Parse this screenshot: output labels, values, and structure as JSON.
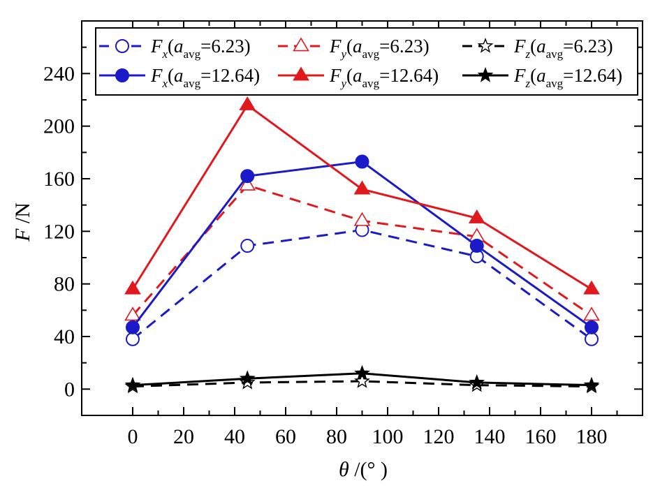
{
  "chart_data": {
    "type": "line",
    "xlabel": {
      "symbol": "θ",
      "unit": "/(°  )"
    },
    "ylabel": {
      "symbol": "F",
      "unit": "/N"
    },
    "xlim": [
      -20,
      200
    ],
    "ylim": [
      -20,
      280
    ],
    "x_ticks": [
      0,
      20,
      40,
      60,
      80,
      100,
      120,
      140,
      160,
      180
    ],
    "y_ticks": [
      0,
      40,
      80,
      120,
      160,
      200,
      240
    ],
    "x_minor_ticks": [
      10,
      30,
      50,
      70,
      90,
      110,
      130,
      150,
      170,
      190
    ],
    "y_minor_ticks": [
      20,
      60,
      100,
      140,
      180,
      220,
      260
    ],
    "x": [
      0,
      45,
      90,
      135,
      180
    ],
    "legend_position": "top",
    "series": [
      {
        "id": "fx1",
        "base": "F",
        "sub": "x",
        "cond": "=6.23)",
        "values": [
          38,
          109,
          121,
          101,
          38
        ],
        "color": "#1a1ac8",
        "dash": "dashed",
        "marker": "circle",
        "filled": false
      },
      {
        "id": "fy1",
        "base": "F",
        "sub": "y",
        "cond": "=6.23)",
        "values": [
          56,
          155,
          128,
          116,
          56
        ],
        "color": "#e0191e",
        "dash": "dashed",
        "marker": "triangle",
        "filled": false
      },
      {
        "id": "fz1",
        "base": "F",
        "sub": "z",
        "cond": "=6.23)",
        "values": [
          2,
          5,
          6,
          3,
          2
        ],
        "color": "#000000",
        "dash": "dashed",
        "marker": "star",
        "filled": false
      },
      {
        "id": "fx2",
        "base": "F",
        "sub": "x",
        "cond": "=12.64)",
        "values": [
          47,
          162,
          173,
          109,
          47
        ],
        "color": "#1a1ac8",
        "dash": "solid",
        "marker": "circle",
        "filled": true
      },
      {
        "id": "fy2",
        "base": "F",
        "sub": "y",
        "cond": "=12.64)",
        "values": [
          76,
          216,
          152,
          130,
          76
        ],
        "color": "#e0191e",
        "dash": "solid",
        "marker": "triangle",
        "filled": true
      },
      {
        "id": "fz2",
        "base": "F",
        "sub": "z",
        "cond": "=12.64)",
        "values": [
          3,
          8,
          12,
          5,
          3
        ],
        "color": "#000000",
        "dash": "solid",
        "marker": "star",
        "filled": true
      }
    ],
    "legend_shared": {
      "open": "(",
      "a": "a",
      "avg": "avg"
    }
  }
}
